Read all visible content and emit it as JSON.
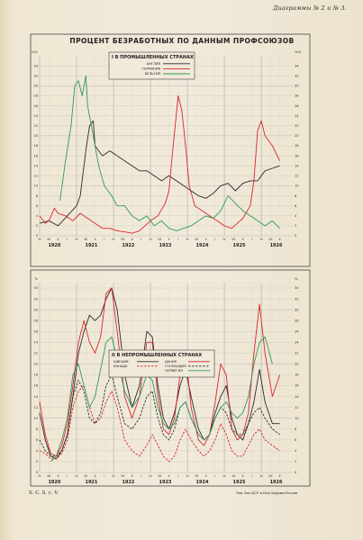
{
  "header": {
    "right": "Диаграммы № 2 и № 3."
  },
  "footer": {
    "left": "S. C. S. c. V.",
    "right": "Тип.Лит.ЦСУ и Изд.Окружн.Россия"
  },
  "main_title": "ПРОЦЕНТ БЕЗРАБОТНЫХ ПО ДАННЫМ ПРОФСОЮЗОВ",
  "colors": {
    "black": "#2b2b2b",
    "red": "#d8262a",
    "green": "#2f9a5a",
    "grid": "#b5b5b5"
  },
  "chart_data": [
    {
      "type": "line",
      "title": "I В ПРОМЫШЛЕННЫХ СТРАНАХ",
      "y_unit_label": "%%",
      "ylim": [
        0,
        36
      ],
      "yticks": [
        0,
        2,
        4,
        6,
        8,
        10,
        12,
        14,
        16,
        18,
        20,
        22,
        24,
        26,
        28,
        30,
        32,
        34
      ],
      "grid": true,
      "legend_position": "top-left",
      "x_range": [
        1920.0,
        1926.85
      ],
      "month_labels": [
        "IV",
        "VII",
        "X",
        "I",
        "IV",
        "VII",
        "X",
        "I",
        "IV",
        "VII",
        "X",
        "I",
        "IV",
        "VII",
        "X",
        "I",
        "IV",
        "VII",
        "X",
        "I",
        "IV",
        "VII",
        "X",
        "I",
        "IV",
        "VII",
        "X"
      ],
      "year_labels": [
        "1920",
        "1921",
        "1922",
        "1923",
        "1924",
        "1925",
        "1926"
      ],
      "series": [
        {
          "name": "АНГЛИЯ",
          "color": "black",
          "x": [
            1920.0,
            1920.25,
            1920.5,
            1920.75,
            1921.0,
            1921.1,
            1921.25,
            1921.35,
            1921.45,
            1921.5,
            1921.7,
            1921.9,
            1922.1,
            1922.3,
            1922.5,
            1922.7,
            1922.9,
            1923.1,
            1923.3,
            1923.5,
            1923.7,
            1923.9,
            1924.1,
            1924.3,
            1924.5,
            1924.7,
            1924.9,
            1925.1,
            1925.3,
            1925.5,
            1925.7,
            1925.9,
            1926.1,
            1926.3,
            1926.5
          ],
          "values": [
            2.5,
            3.0,
            2.0,
            4.0,
            6.0,
            8.0,
            17.0,
            22.0,
            23.0,
            18.0,
            16.0,
            17.0,
            16.0,
            15.0,
            14.0,
            13.0,
            13.0,
            12.0,
            11.0,
            12.0,
            11.0,
            10.0,
            9.0,
            8.0,
            7.5,
            8.5,
            10.0,
            10.5,
            9.0,
            10.5,
            11.0,
            11.0,
            13.0,
            13.5,
            14.0
          ]
        },
        {
          "name": "ГЕРМАНИЯ",
          "color": "red",
          "x": [
            1920.0,
            1920.15,
            1920.25,
            1920.4,
            1920.5,
            1920.7,
            1920.9,
            1921.1,
            1921.3,
            1921.5,
            1921.7,
            1921.9,
            1922.1,
            1922.3,
            1922.5,
            1922.7,
            1922.85,
            1923.0,
            1923.2,
            1923.4,
            1923.5,
            1923.6,
            1923.75,
            1923.85,
            1923.95,
            1924.05,
            1924.2,
            1924.4,
            1924.6,
            1924.8,
            1925.0,
            1925.2,
            1925.5,
            1925.7,
            1925.8,
            1925.9,
            1926.0,
            1926.1,
            1926.3,
            1926.5
          ],
          "values": [
            4.0,
            2.5,
            3.0,
            5.5,
            4.5,
            4.0,
            3.0,
            4.5,
            3.5,
            2.5,
            1.5,
            1.5,
            1.0,
            0.8,
            0.5,
            1.0,
            2.0,
            3.0,
            4.0,
            6.5,
            9.0,
            17.0,
            28.0,
            25.0,
            18.0,
            10.0,
            6.0,
            5.0,
            4.0,
            3.0,
            2.0,
            1.5,
            3.5,
            6.0,
            11.0,
            21.0,
            23.0,
            20.0,
            18.0,
            15.0
          ]
        },
        {
          "name": "БЕЛЬГИЯ",
          "color": "green",
          "x": [
            1920.55,
            1920.7,
            1920.85,
            1920.95,
            1921.05,
            1921.15,
            1921.25,
            1921.3,
            1921.35,
            1921.45,
            1921.6,
            1921.75,
            1921.85,
            1921.95,
            1922.1,
            1922.3,
            1922.5,
            1922.7,
            1922.9,
            1923.1,
            1923.3,
            1923.5,
            1923.7,
            1923.9,
            1924.1,
            1924.3,
            1924.5,
            1924.7,
            1924.9,
            1925.1,
            1925.3,
            1925.5,
            1925.7,
            1925.9,
            1926.1,
            1926.3,
            1926.5
          ],
          "values": [
            7.0,
            15.0,
            22.0,
            30.0,
            31.0,
            28.0,
            32.0,
            26.0,
            24.0,
            20.0,
            14.0,
            10.0,
            9.0,
            8.0,
            6.0,
            6.0,
            4.0,
            3.0,
            4.0,
            2.0,
            3.0,
            1.5,
            1.0,
            1.5,
            2.0,
            3.0,
            4.0,
            3.5,
            5.0,
            8.0,
            6.5,
            5.0,
            4.0,
            3.0,
            2.0,
            3.0,
            1.5
          ]
        }
      ]
    },
    {
      "type": "line",
      "title": "II В НЕПРОМЫШЛЕННЫХ СТРАНАХ",
      "y_unit_label": "%",
      "ylim": [
        0,
        35
      ],
      "yticks": [
        0,
        2,
        4,
        6,
        8,
        10,
        12,
        14,
        16,
        18,
        20,
        22,
        24,
        26,
        28,
        30,
        32,
        34
      ],
      "grid": true,
      "legend_position": "top-left",
      "x_range": [
        1920.0,
        1926.85
      ],
      "month_labels": [
        "IV",
        "VII",
        "X",
        "I",
        "IV",
        "VII",
        "X",
        "I",
        "IV",
        "VII",
        "X",
        "I",
        "IV",
        "VII",
        "X",
        "I",
        "IV",
        "VII",
        "X",
        "I",
        "IV",
        "VII",
        "X",
        "I",
        "IV",
        "VII",
        "X"
      ],
      "year_labels": [
        "1920",
        "1921",
        "1922",
        "1923",
        "1924",
        "1925",
        "1926"
      ],
      "series": [
        {
          "name": "ШВЕЦИЯ",
          "color": "black",
          "style": "solid",
          "x": [
            1920.0,
            1920.15,
            1920.3,
            1920.45,
            1920.6,
            1920.75,
            1920.9,
            1921.05,
            1921.2,
            1921.35,
            1921.5,
            1921.65,
            1921.8,
            1921.95,
            1922.1,
            1922.3,
            1922.5,
            1922.7,
            1922.9,
            1923.05,
            1923.2,
            1923.35,
            1923.5,
            1923.65,
            1923.8,
            1923.95,
            1924.1,
            1924.3,
            1924.45,
            1924.6,
            1924.75,
            1924.9,
            1925.05,
            1925.2,
            1925.35,
            1925.5,
            1925.65,
            1925.8,
            1925.95,
            1926.1,
            1926.3,
            1926.5
          ],
          "values": [
            11.0,
            6.0,
            3.0,
            2.5,
            4.0,
            7.0,
            14.0,
            22.0,
            26.0,
            29.0,
            28.0,
            29.0,
            32.0,
            34.0,
            30.0,
            18.0,
            12.0,
            16.0,
            26.0,
            25.0,
            16.0,
            10.0,
            8.0,
            11.0,
            16.0,
            19.0,
            14.0,
            8.0,
            6.0,
            7.0,
            11.0,
            14.0,
            16.0,
            10.0,
            7.0,
            6.0,
            9.0,
            13.0,
            19.0,
            13.0,
            9.0,
            9.0
          ]
        },
        {
          "name": "ДАНИЯ",
          "color": "red",
          "style": "solid",
          "x": [
            1920.0,
            1920.15,
            1920.3,
            1920.45,
            1920.6,
            1920.75,
            1920.9,
            1921.05,
            1921.2,
            1921.35,
            1921.5,
            1921.65,
            1921.8,
            1921.95,
            1922.1,
            1922.3,
            1922.5,
            1922.7,
            1922.9,
            1923.05,
            1923.2,
            1923.35,
            1923.5,
            1923.65,
            1923.8,
            1923.95,
            1924.1,
            1924.3,
            1924.45,
            1924.6,
            1924.75,
            1924.9,
            1925.05,
            1925.2,
            1925.35,
            1925.5,
            1925.65,
            1925.8,
            1925.95,
            1926.1,
            1926.3,
            1926.5
          ],
          "values": [
            13.0,
            7.0,
            3.5,
            3.0,
            5.0,
            9.0,
            16.0,
            24.0,
            28.0,
            24.0,
            22.0,
            25.0,
            33.0,
            34.0,
            26.0,
            14.0,
            10.0,
            14.0,
            24.0,
            24.0,
            14.0,
            8.0,
            7.0,
            10.0,
            18.0,
            22.0,
            12.0,
            6.0,
            5.0,
            7.0,
            13.0,
            20.0,
            18.0,
            8.0,
            6.0,
            7.0,
            11.0,
            22.0,
            31.0,
            22.0,
            14.0,
            18.0
          ]
        },
        {
          "name": "КАНАДА",
          "color": "red",
          "style": "dashed",
          "x": [
            1920.0,
            1920.15,
            1920.3,
            1920.45,
            1920.6,
            1920.75,
            1920.9,
            1921.05,
            1921.2,
            1921.35,
            1921.5,
            1921.65,
            1921.8,
            1921.95,
            1922.1,
            1922.3,
            1922.5,
            1922.7,
            1922.9,
            1923.05,
            1923.2,
            1923.35,
            1923.5,
            1923.65,
            1923.8,
            1923.95,
            1924.1,
            1924.3,
            1924.45,
            1924.6,
            1924.75,
            1924.9,
            1925.05,
            1925.2,
            1925.35,
            1925.5,
            1925.65,
            1925.8,
            1925.95,
            1926.1,
            1926.3,
            1926.5
          ],
          "values": [
            4.0,
            3.5,
            2.5,
            2.5,
            3.5,
            6.0,
            12.0,
            15.0,
            16.0,
            12.0,
            9.0,
            10.0,
            13.0,
            15.0,
            12.0,
            6.0,
            4.0,
            3.0,
            5.0,
            7.0,
            5.0,
            3.0,
            2.0,
            3.0,
            6.0,
            8.0,
            6.0,
            4.0,
            3.0,
            4.0,
            6.0,
            9.0,
            7.0,
            4.0,
            3.0,
            3.0,
            5.0,
            7.0,
            8.0,
            6.0,
            5.0,
            4.0
          ]
        },
        {
          "name": "ГОЛЛАНДИЯ",
          "color": "black",
          "style": "dashed",
          "x": [
            1920.0,
            1920.15,
            1920.3,
            1920.45,
            1920.6,
            1920.75,
            1920.9,
            1921.05,
            1921.2,
            1921.35,
            1921.5,
            1921.65,
            1921.8,
            1921.95,
            1922.1,
            1922.3,
            1922.5,
            1922.7,
            1922.9,
            1923.05,
            1923.2,
            1923.35,
            1923.5,
            1923.65,
            1923.8,
            1923.95,
            1924.1,
            1924.3,
            1924.45,
            1924.6,
            1924.75,
            1924.9,
            1925.05,
            1925.2,
            1925.35,
            1925.5,
            1925.65,
            1925.8,
            1925.95,
            1926.1,
            1926.3,
            1926.5
          ],
          "values": [
            6.0,
            4.0,
            3.0,
            3.0,
            4.0,
            7.0,
            14.0,
            17.0,
            15.0,
            10.0,
            9.0,
            11.0,
            16.0,
            18.0,
            14.0,
            9.0,
            8.0,
            10.0,
            14.0,
            15.0,
            10.0,
            7.0,
            6.0,
            8.0,
            12.0,
            13.0,
            10.0,
            7.0,
            6.0,
            7.0,
            10.0,
            12.0,
            11.0,
            8.0,
            7.0,
            7.0,
            9.0,
            11.0,
            12.0,
            10.0,
            8.0,
            7.0
          ]
        },
        {
          "name": "НОРВЕГИЯ",
          "color": "green",
          "style": "solid",
          "x": [
            1920.3,
            1920.45,
            1920.6,
            1920.75,
            1920.9,
            1921.05,
            1921.2,
            1921.35,
            1921.5,
            1921.65,
            1921.8,
            1921.95,
            1922.1,
            1922.3,
            1922.5,
            1922.7,
            1922.9,
            1923.05,
            1923.2,
            1923.35,
            1923.5,
            1923.65,
            1923.8,
            1923.95,
            1924.1,
            1924.3,
            1924.45,
            1924.6,
            1924.75,
            1924.9,
            1925.05,
            1925.2,
            1925.35,
            1925.5,
            1925.65,
            1925.8,
            1925.95,
            1926.1,
            1926.3
          ],
          "values": [
            2.0,
            3.0,
            6.0,
            10.0,
            18.0,
            20.0,
            16.0,
            12.0,
            14.0,
            19.0,
            24.0,
            25.0,
            21.0,
            15.0,
            12.0,
            14.0,
            18.0,
            17.0,
            12.0,
            9.0,
            8.0,
            9.0,
            12.0,
            13.0,
            10.0,
            7.0,
            6.0,
            7.0,
            10.0,
            12.0,
            13.0,
            11.0,
            10.0,
            11.0,
            14.0,
            20.0,
            24.0,
            25.0,
            20.0
          ]
        }
      ]
    }
  ]
}
